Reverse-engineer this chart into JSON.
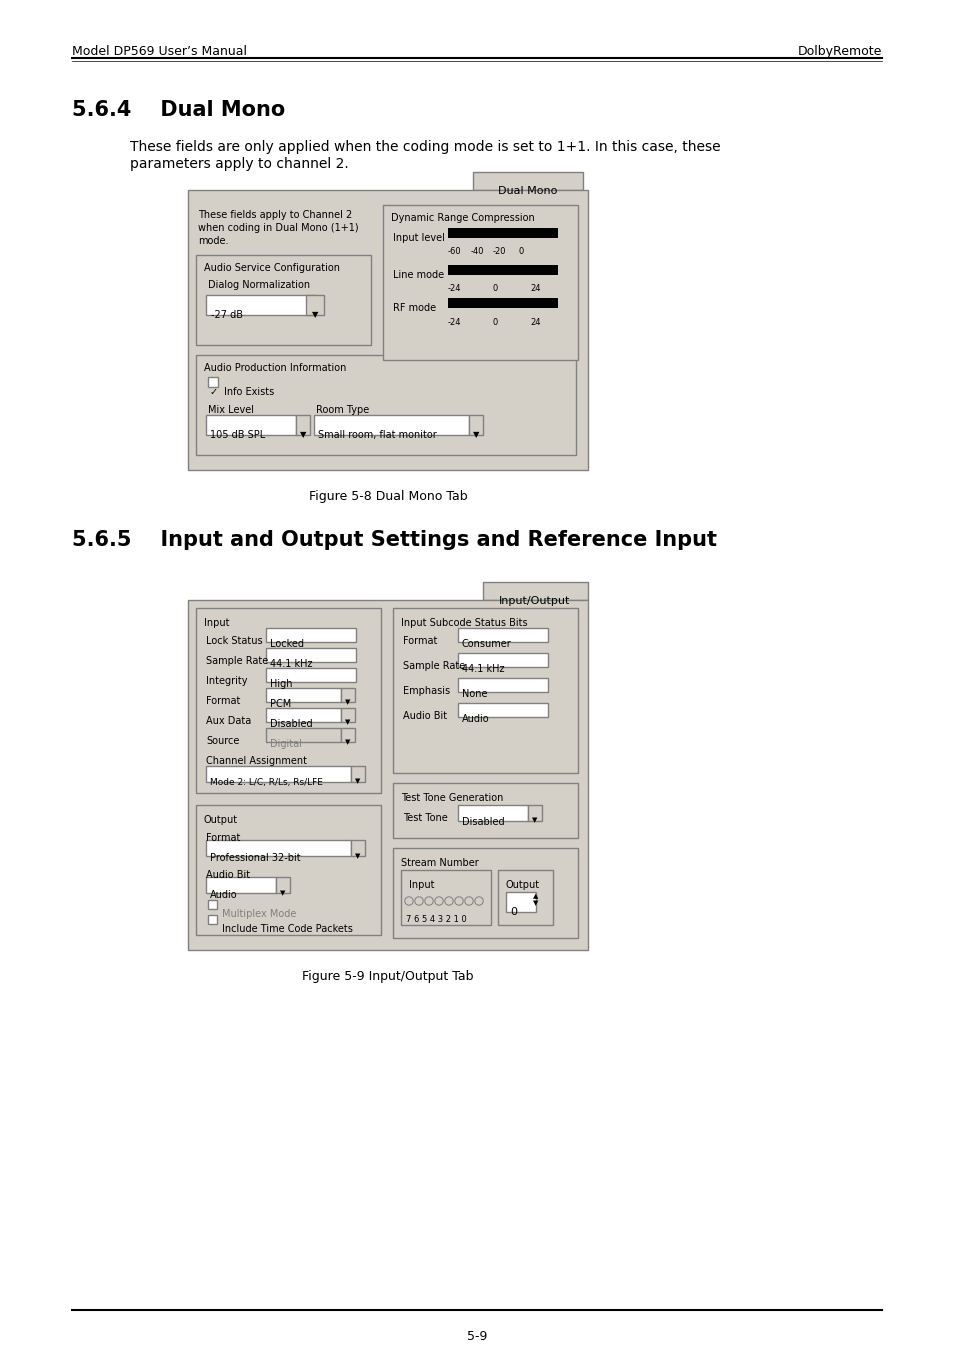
{
  "page_bg": "#ffffff",
  "header_left": "Model DP569 User’s Manual",
  "header_right": "DolbyRemote",
  "footer_text": "5-9",
  "section_564_title": "5.6.4    Dual Mono",
  "section_564_body": "These fields are only applied when the coding mode is set to 1+1. In this case, these\nparameters apply to channel 2.",
  "figure8_caption": "Figure 5-8 Dual Mono Tab",
  "section_565_title": "5.6.5    Input and Output Settings and Reference Input",
  "figure9_caption": "Figure 5-9 Input/Output Tab",
  "ui_bg": "#c0c0c0",
  "ui_border": "#808080",
  "ui_white": "#ffffff",
  "ui_black": "#000000",
  "ui_dark": "#404040",
  "text_color": "#000000",
  "header_line_color": "#000000",
  "footer_line_color": "#000000"
}
